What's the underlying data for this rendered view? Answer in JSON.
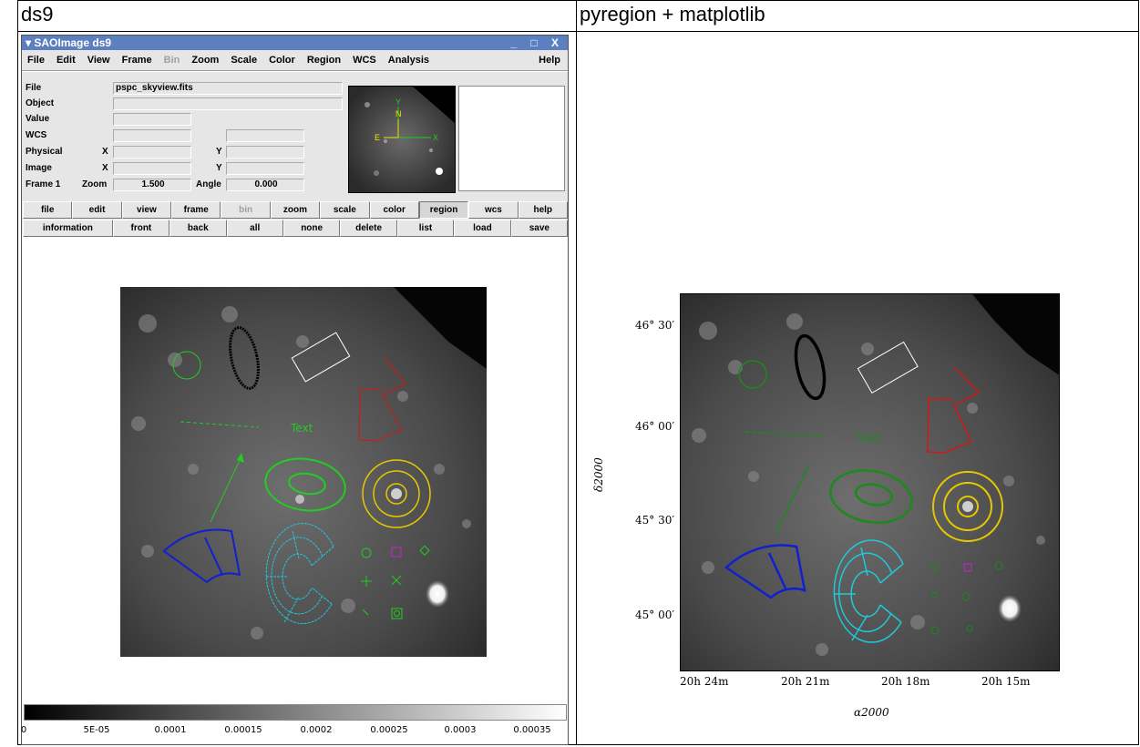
{
  "columns": {
    "left": "ds9",
    "right": "pyregion + matplotlib"
  },
  "window": {
    "title": "SAOImage ds9",
    "controls": "_ □ X"
  },
  "menu": [
    "File",
    "Edit",
    "View",
    "Frame",
    "Bin",
    "Zoom",
    "Scale",
    "Color",
    "Region",
    "WCS",
    "Analysis"
  ],
  "menu_help": "Help",
  "info": {
    "file_label": "File",
    "file_value": "pspc_skyview.fits",
    "object_label": "Object",
    "value_label": "Value",
    "wcs_label": "WCS",
    "physical_label": "Physical",
    "image_label": "Image",
    "x": "X",
    "y": "Y",
    "frame_label": "Frame 1",
    "zoom_label": "Zoom",
    "zoom_value": "1.500",
    "angle_label": "Angle",
    "angle_value": "0.000"
  },
  "compass": {
    "n": "N",
    "e": "E",
    "x": "X",
    "y": "Y"
  },
  "buttons_row1": [
    "file",
    "edit",
    "view",
    "frame",
    "bin",
    "zoom",
    "scale",
    "color",
    "region",
    "wcs",
    "help"
  ],
  "buttons_row2": [
    "information",
    "front",
    "back",
    "all",
    "none",
    "delete",
    "list",
    "load",
    "save"
  ],
  "region_text": "Text",
  "colorbar_ticks": [
    "0",
    "5E-05",
    "0.0001",
    "0.00015",
    "0.0002",
    "0.00025",
    "0.0003",
    "0.00035"
  ],
  "mpl": {
    "y_ticks": [
      "46° 30′",
      "46° 00′",
      "45° 30′",
      "45° 00′"
    ],
    "x_ticks": [
      "20h 24m",
      "20h 21m",
      "20h 18m",
      "20h 15m"
    ],
    "xlabel": "α2000",
    "ylabel": "δ2000",
    "text": "Text"
  },
  "colors": {
    "green": "#22cc22",
    "black": "#000000",
    "white": "#ffffff",
    "red": "#d01818",
    "yellow": "#e6c800",
    "blue": "#1020d0",
    "cyan": "#20c8d8",
    "magenta": "#d020d0"
  }
}
